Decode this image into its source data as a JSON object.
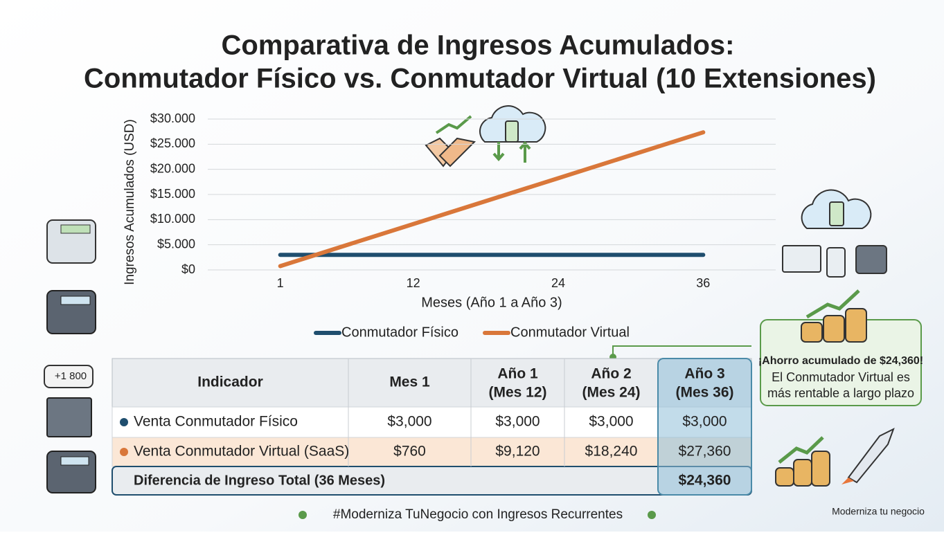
{
  "chart_data": {
    "type": "line",
    "title": [
      "Comparativa de Ingresos Acumulados:",
      "Conmutador Físico vs. Conmutador Virtual (10 Extensiones)"
    ],
    "y_label": "Ingresos Acumulados (USD)",
    "x_label": "Meses (Año 1 a Año 3)",
    "x": [
      1,
      12,
      24,
      36
    ],
    "xlim": [
      -5,
      42
    ],
    "xticks": [
      1,
      12,
      24,
      36
    ],
    "ylim": [
      0,
      30000
    ],
    "yticks": [
      {
        "value": 0,
        "label": "$0"
      },
      {
        "value": 5000,
        "label": "$5.000"
      },
      {
        "value": 10000,
        "label": "$10.000"
      },
      {
        "value": 15000,
        "label": "$15.000"
      },
      {
        "value": 20000,
        "label": "$20.000"
      },
      {
        "value": 25000,
        "label": "$25.000"
      },
      {
        "value": 30000,
        "label": "$30.000"
      }
    ],
    "grid": true,
    "series": [
      {
        "name": "Conmutador Físico",
        "color": "#1f4e6e",
        "values": [
          3000,
          3000,
          3000,
          3000
        ]
      },
      {
        "name": "Conmutador Virtual",
        "color": "#d9773a",
        "values": [
          760,
          9120,
          18240,
          27360
        ]
      }
    ]
  },
  "table": {
    "header": [
      [
        "Indicador"
      ],
      [
        "Mes 1"
      ],
      [
        "Año 1",
        "(Mes 12)"
      ],
      [
        "Año 2",
        "(Mes 24)"
      ],
      [
        "Año 3",
        "(Mes 36)"
      ]
    ],
    "rows": [
      [
        "Venta Conmutador Físico",
        "$3,000",
        "$3,000",
        "$3,000",
        "$3,000"
      ],
      [
        "Venta Conmutador Virtual (SaaS)",
        "$760",
        "$9,120",
        "$18,240",
        "$27,360"
      ]
    ],
    "total": [
      "Diferencia de Ingreso Total (36 Meses)",
      "$24,360"
    ]
  },
  "callout": [
    "¡Ahorro acumulado de $24,360!",
    "El Conmutador Virtual es",
    "más rentable a largo plazo"
  ],
  "icon_text": "+1 800",
  "footer": "#Moderniza TuNegocio con Ingresos Recurrentes",
  "brand": "Moderniza tu negocio"
}
